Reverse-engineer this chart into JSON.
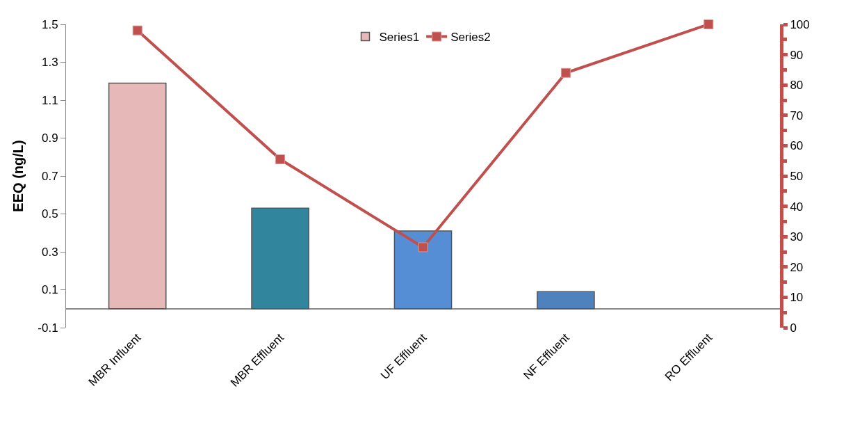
{
  "chart_data": {
    "type": "bar",
    "ylabel": "EEQ (ng/L)",
    "categories": [
      "MBR Influent",
      "MBR Effluent",
      "UF Effluent",
      "NF Effluent",
      "RO Effluent"
    ],
    "series": [
      {
        "name": "Series1",
        "colors": [
          "#e6b9b8",
          "#31859c",
          "#558ed5",
          "#4f81bd",
          null
        ],
        "values": [
          1.19,
          0.53,
          0.41,
          0.09,
          null
        ]
      },
      {
        "name": "Series2",
        "type": "line",
        "axis": "y2",
        "color": "#c0504d",
        "marker": "square",
        "line_style": "solid",
        "values": [
          98,
          55.5,
          26.5,
          84,
          100
        ]
      }
    ],
    "ylim": [
      -0.1,
      1.5
    ],
    "yticks": [
      -0.1,
      0.1,
      0.3,
      0.5,
      0.7,
      0.9,
      1.1,
      1.3,
      1.5
    ],
    "y2lim": [
      0,
      100
    ],
    "y2ticks": [
      0,
      10,
      20,
      30,
      40,
      50,
      60,
      70,
      80,
      90,
      100
    ],
    "legend": "top"
  }
}
